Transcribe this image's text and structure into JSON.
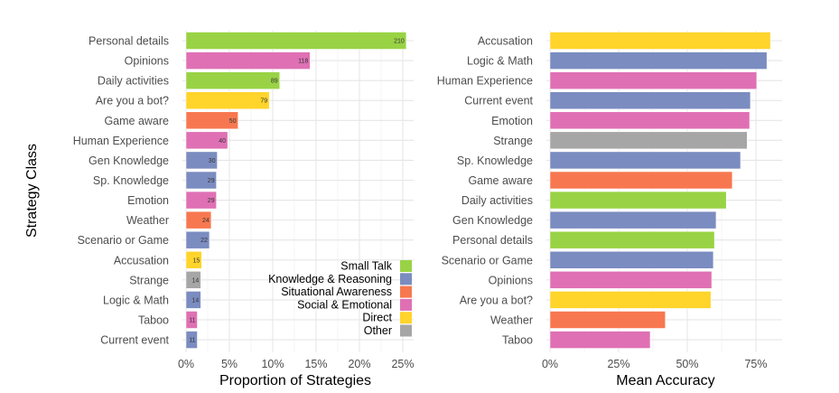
{
  "colors": {
    "Small Talk": "#99d345",
    "Knowledge & Reasoning": "#7b8cc0",
    "Situational Awareness": "#f77850",
    "Social & Emotional": "#df70b4",
    "Direct": "#ffd42b",
    "Other": "#a6a6a6"
  },
  "chart_data": [
    {
      "type": "bar",
      "orientation": "horizontal",
      "title": "",
      "xlabel": "Proportion of Strategies",
      "ylabel": "Strategy Class",
      "xlim": [
        0,
        0.26
      ],
      "xticks": [
        0,
        0.05,
        0.1,
        0.15,
        0.2,
        0.25
      ],
      "xtick_labels": [
        "0%",
        "5%",
        "10%",
        "15%",
        "20%",
        "25%"
      ],
      "grid": true,
      "legend_position": "bottom-right",
      "categories": [
        "Personal details",
        "Opinions",
        "Daily activities",
        "Are you a bot?",
        "Game aware",
        "Human Experience",
        "Gen Knowledge",
        "Sp. Knowledge",
        "Emotion",
        "Weather",
        "Scenario or Game",
        "Accusation",
        "Strange",
        "Logic & Math",
        "Taboo",
        "Current event"
      ],
      "groups": [
        "Small Talk",
        "Social & Emotional",
        "Small Talk",
        "Direct",
        "Situational Awareness",
        "Social & Emotional",
        "Knowledge & Reasoning",
        "Knowledge & Reasoning",
        "Social & Emotional",
        "Situational Awareness",
        "Knowledge & Reasoning",
        "Direct",
        "Other",
        "Knowledge & Reasoning",
        "Social & Emotional",
        "Knowledge & Reasoning"
      ],
      "counts": [
        210,
        118,
        89,
        79,
        50,
        40,
        30,
        29,
        29,
        24,
        22,
        15,
        14,
        14,
        11,
        11
      ],
      "values": [
        0.254,
        0.143,
        0.108,
        0.096,
        0.06,
        0.048,
        0.036,
        0.035,
        0.035,
        0.029,
        0.027,
        0.018,
        0.017,
        0.017,
        0.013,
        0.013
      ],
      "legend": [
        "Small Talk",
        "Knowledge & Reasoning",
        "Situational Awareness",
        "Social & Emotional",
        "Direct",
        "Other"
      ]
    },
    {
      "type": "bar",
      "orientation": "horizontal",
      "title": "",
      "xlabel": "Mean Accuracy",
      "ylabel": "",
      "xlim": [
        0,
        0.84
      ],
      "xticks": [
        0,
        0.25,
        0.5,
        0.75
      ],
      "xtick_labels": [
        "0%",
        "25%",
        "50%",
        "75%"
      ],
      "grid": true,
      "categories": [
        "Accusation",
        "Logic & Math",
        "Human Experience",
        "Current event",
        "Emotion",
        "Strange",
        "Sp. Knowledge",
        "Game aware",
        "Daily activities",
        "Gen Knowledge",
        "Personal details",
        "Scenario or Game",
        "Opinions",
        "Are you a bot?",
        "Weather",
        "Taboo"
      ],
      "groups": [
        "Direct",
        "Knowledge & Reasoning",
        "Social & Emotional",
        "Knowledge & Reasoning",
        "Social & Emotional",
        "Other",
        "Knowledge & Reasoning",
        "Situational Awareness",
        "Small Talk",
        "Knowledge & Reasoning",
        "Small Talk",
        "Knowledge & Reasoning",
        "Social & Emotional",
        "Direct",
        "Situational Awareness",
        "Social & Emotional"
      ],
      "values": [
        0.803,
        0.79,
        0.753,
        0.73,
        0.727,
        0.718,
        0.694,
        0.664,
        0.642,
        0.605,
        0.599,
        0.595,
        0.589,
        0.586,
        0.42,
        0.365
      ]
    }
  ]
}
